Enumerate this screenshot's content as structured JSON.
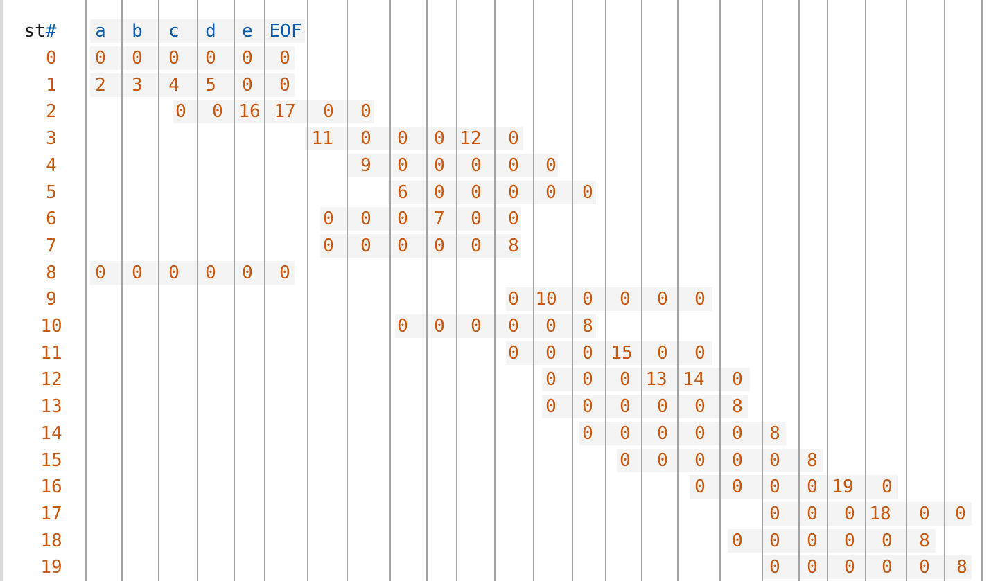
{
  "header": {
    "state_label": "st",
    "state_hash": "#",
    "columns": [
      "a",
      "b",
      "c",
      "d",
      "e",
      "EOF"
    ]
  },
  "colors": {
    "header": "#0b5cad",
    "number": "#c8580e",
    "text": "#1a1a1a",
    "cell_shade": "#f4f4f4",
    "column_line": "#a3a3a3"
  },
  "rows": [
    {
      "state": "0",
      "values": [
        "0",
        "0",
        "0",
        "0",
        "0",
        "0"
      ]
    },
    {
      "state": "1",
      "values": [
        "2",
        "3",
        "4",
        "5",
        "0",
        "0"
      ]
    },
    {
      "state": "2",
      "values": [
        "0",
        "0",
        "16",
        "17",
        "0",
        "0"
      ]
    },
    {
      "state": "3",
      "values": [
        "11",
        "0",
        "0",
        "0",
        "12",
        "0"
      ]
    },
    {
      "state": "4",
      "values": [
        "9",
        "0",
        "0",
        "0",
        "0",
        "0"
      ]
    },
    {
      "state": "5",
      "values": [
        "6",
        "0",
        "0",
        "0",
        "0",
        "0"
      ]
    },
    {
      "state": "6",
      "values": [
        "0",
        "0",
        "0",
        "7",
        "0",
        "0"
      ]
    },
    {
      "state": "7",
      "values": [
        "0",
        "0",
        "0",
        "0",
        "0",
        "8"
      ]
    },
    {
      "state": "8",
      "values": [
        "0",
        "0",
        "0",
        "0",
        "0",
        "0"
      ]
    },
    {
      "state": "9",
      "values": [
        "0",
        "10",
        "0",
        "0",
        "0",
        "0"
      ]
    },
    {
      "state": "10",
      "values": [
        "0",
        "0",
        "0",
        "0",
        "0",
        "8"
      ]
    },
    {
      "state": "11",
      "values": [
        "0",
        "0",
        "0",
        "15",
        "0",
        "0"
      ]
    },
    {
      "state": "12",
      "values": [
        "0",
        "0",
        "0",
        "13",
        "14",
        "0"
      ]
    },
    {
      "state": "13",
      "values": [
        "0",
        "0",
        "0",
        "0",
        "0",
        "8"
      ]
    },
    {
      "state": "14",
      "values": [
        "0",
        "0",
        "0",
        "0",
        "0",
        "8"
      ]
    },
    {
      "state": "15",
      "values": [
        "0",
        "0",
        "0",
        "0",
        "0",
        "8"
      ]
    },
    {
      "state": "16",
      "values": [
        "0",
        "0",
        "0",
        "0",
        "19",
        "0"
      ]
    },
    {
      "state": "17",
      "values": [
        "0",
        "0",
        "0",
        "18",
        "0",
        "0"
      ]
    },
    {
      "state": "18",
      "values": [
        "0",
        "0",
        "0",
        "0",
        "0",
        "8"
      ]
    },
    {
      "state": "19",
      "values": [
        "0",
        "0",
        "0",
        "0",
        "0",
        "8"
      ]
    }
  ]
}
